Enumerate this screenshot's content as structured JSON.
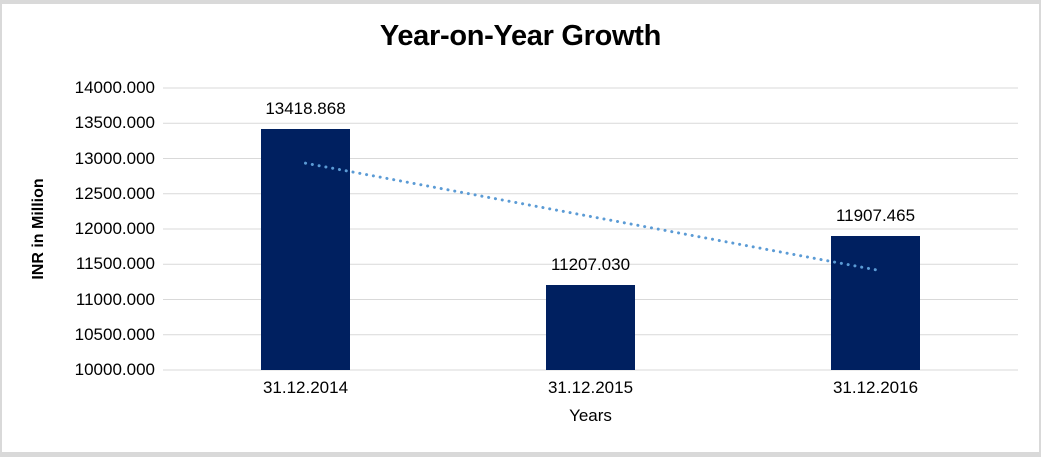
{
  "chart_data": {
    "type": "bar",
    "title": "Year-on-Year Growth",
    "categories": [
      "31.12.2014",
      "31.12.2015",
      "31.12.2016"
    ],
    "values": [
      13418.868,
      11207.03,
      11907.465
    ],
    "value_labels": [
      "13418.868",
      "11207.030",
      "11907.465"
    ],
    "xlabel": "Years",
    "ylabel": "INR in Million",
    "ylim": [
      10000,
      14000
    ],
    "ytick_step": 500,
    "ytick_labels": [
      "14000.000",
      "13500.000",
      "13000.000",
      "12500.000",
      "12000.000",
      "11500.000",
      "11000.000",
      "10500.000",
      "10000.000"
    ],
    "grid": true,
    "legend": "none",
    "trendline": {
      "type": "linear",
      "style": "dotted",
      "endpoints_values": [
        12933.5,
        11422.1
      ]
    }
  },
  "colors": {
    "bar": "#002060",
    "trendline": "#5B9BD5",
    "gridline": "#D9D9D9",
    "frame_border": "#D9D9D9",
    "background": "#FFFFFF",
    "text": "#000000"
  }
}
